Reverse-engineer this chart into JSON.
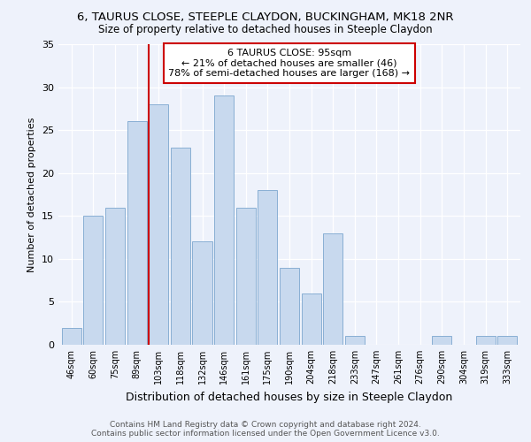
{
  "title1": "6, TAURUS CLOSE, STEEPLE CLAYDON, BUCKINGHAM, MK18 2NR",
  "title2": "Size of property relative to detached houses in Steeple Claydon",
  "xlabel": "Distribution of detached houses by size in Steeple Claydon",
  "ylabel": "Number of detached properties",
  "categories": [
    "46sqm",
    "60sqm",
    "75sqm",
    "89sqm",
    "103sqm",
    "118sqm",
    "132sqm",
    "146sqm",
    "161sqm",
    "175sqm",
    "190sqm",
    "204sqm",
    "218sqm",
    "233sqm",
    "247sqm",
    "261sqm",
    "276sqm",
    "290sqm",
    "304sqm",
    "319sqm",
    "333sqm"
  ],
  "values": [
    2,
    15,
    16,
    26,
    28,
    23,
    12,
    29,
    16,
    18,
    9,
    6,
    13,
    1,
    0,
    0,
    0,
    1,
    0,
    1,
    1
  ],
  "bar_color": "#c8d9ee",
  "bar_edge_color": "#89afd4",
  "background_color": "#eef2fb",
  "ylim": [
    0,
    35
  ],
  "yticks": [
    0,
    5,
    10,
    15,
    20,
    25,
    30,
    35
  ],
  "vline_x_index": 4.0,
  "vline_color": "#cc0000",
  "annotation_title": "6 TAURUS CLOSE: 95sqm",
  "annotation_line1": "← 21% of detached houses are smaller (46)",
  "annotation_line2": "78% of semi-detached houses are larger (168) →",
  "annotation_box_color": "#ffffff",
  "annotation_box_edge": "#cc0000",
  "footer1": "Contains HM Land Registry data © Crown copyright and database right 2024.",
  "footer2": "Contains public sector information licensed under the Open Government Licence v3.0."
}
